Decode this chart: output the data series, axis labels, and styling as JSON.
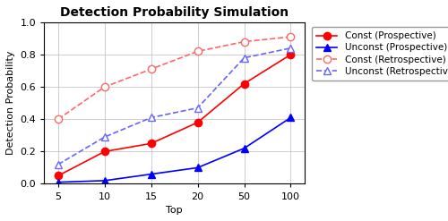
{
  "title": "Detection Probability Simulation",
  "xlabel": "Top",
  "ylabel": "Detection Probability",
  "x_positions": [
    0,
    1,
    2,
    3,
    4,
    5
  ],
  "x_labels": [
    "5",
    "10",
    "15",
    "20",
    "50",
    "100"
  ],
  "series": {
    "const_prospective": {
      "y": [
        0.05,
        0.2,
        0.25,
        0.38,
        0.62,
        0.8
      ],
      "color": "#ff0000",
      "linestyle": "-",
      "marker": "o",
      "markerfacecolor": "#ff0000",
      "label": "Const (Prospective)",
      "linewidth": 1.2,
      "markersize": 6
    },
    "unconst_prospective": {
      "y": [
        0.01,
        0.02,
        0.06,
        0.1,
        0.22,
        0.41
      ],
      "color": "#0000ff",
      "linestyle": "-",
      "marker": "^",
      "markerfacecolor": "#0000ff",
      "label": "Unconst (Prospective)",
      "linewidth": 1.2,
      "markersize": 6
    },
    "const_retrospective": {
      "y": [
        0.4,
        0.6,
        0.71,
        0.82,
        0.88,
        0.91
      ],
      "color": "#ff6666",
      "linestyle": "--",
      "marker": "o",
      "markerfacecolor": "white",
      "label": "Const (Retrospective)",
      "linewidth": 1.2,
      "markersize": 6
    },
    "unconst_retrospective": {
      "y": [
        0.12,
        0.29,
        0.41,
        0.47,
        0.78,
        0.84
      ],
      "color": "#6666ff",
      "linestyle": "--",
      "marker": "^",
      "markerfacecolor": "white",
      "label": "Unconst (Retrospective)",
      "linewidth": 1.2,
      "markersize": 6
    }
  },
  "ylim": [
    0,
    1.0
  ],
  "yticks": [
    0,
    0.2,
    0.4,
    0.6,
    0.8,
    1
  ],
  "grid_color": "#bbbbbb",
  "background_color": "#ffffff",
  "title_fontsize": 10,
  "axis_label_fontsize": 8,
  "tick_fontsize": 8,
  "legend_fontsize": 7.5
}
